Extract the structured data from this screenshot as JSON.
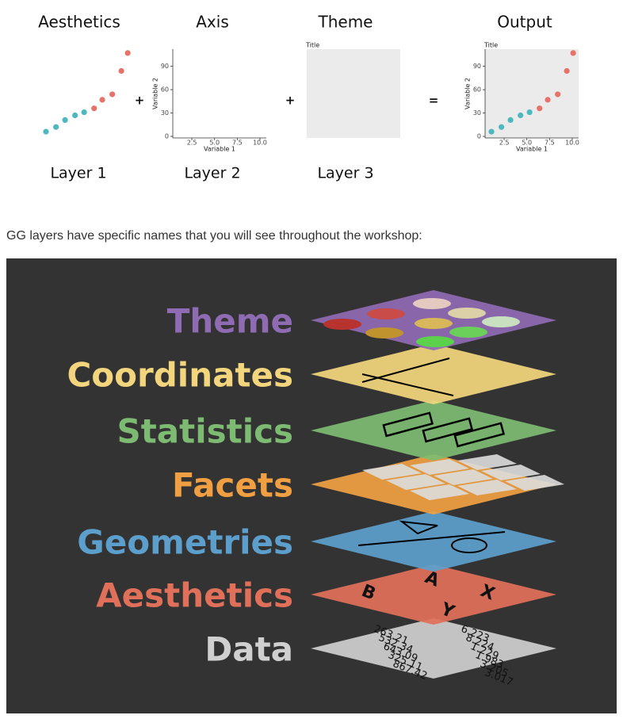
{
  "figure": {
    "panels": [
      {
        "title": "Aesthetics",
        "caption": "Layer 1"
      },
      {
        "title": "Axis",
        "caption": "Layer 2"
      },
      {
        "title": "Theme",
        "caption": "Layer 3"
      },
      {
        "title": "Output"
      }
    ],
    "operators": [
      "+",
      "+",
      "="
    ],
    "plot_title": "Title",
    "xlabel": "Variable 1",
    "ylabel": "Variable 2",
    "xlim": [
      0.4,
      10.7
    ],
    "ylim": [
      -2,
      112
    ],
    "xticks": [
      2.5,
      {
        "value": 5,
        "label": "5.0"
      },
      7.5,
      {
        "value": 10,
        "label": "10.0"
      }
    ],
    "yticks": [
      0,
      30,
      60,
      90
    ],
    "groups": [
      {
        "color": "#4db8be",
        "x": [
          1.1,
          2.2,
          3.2,
          4.3,
          5.3
        ],
        "y": [
          6,
          12,
          21,
          27,
          31
        ]
      },
      {
        "color": "#e5736a",
        "x": [
          6.4,
          7.3,
          8.4,
          9.4,
          10.1
        ],
        "y": [
          36,
          47,
          54,
          84,
          107
        ]
      }
    ]
  },
  "paragraph": "GG layers have specific names that you will see throughout the workshop:",
  "layers": [
    {
      "name": "Theme",
      "color": "#8f6bb3"
    },
    {
      "name": "Coordinates",
      "color": "#f2d57d"
    },
    {
      "name": "Statistics",
      "color": "#7dbb72"
    },
    {
      "name": "Facets",
      "color": "#f0a043"
    },
    {
      "name": "Geometries",
      "color": "#5d9fcc"
    },
    {
      "name": "Aesthetics",
      "color": "#e0705a",
      "labels": [
        "A",
        "X",
        "B",
        "Y"
      ]
    },
    {
      "name": "Data",
      "color": "#cfcfcf",
      "labels": [
        "263.21",
        "532.34",
        "643.09",
        "325.11",
        "867.42",
        "6.223",
        "8.224",
        "1.229",
        "1.983",
        "3.205",
        "3.017"
      ]
    }
  ]
}
